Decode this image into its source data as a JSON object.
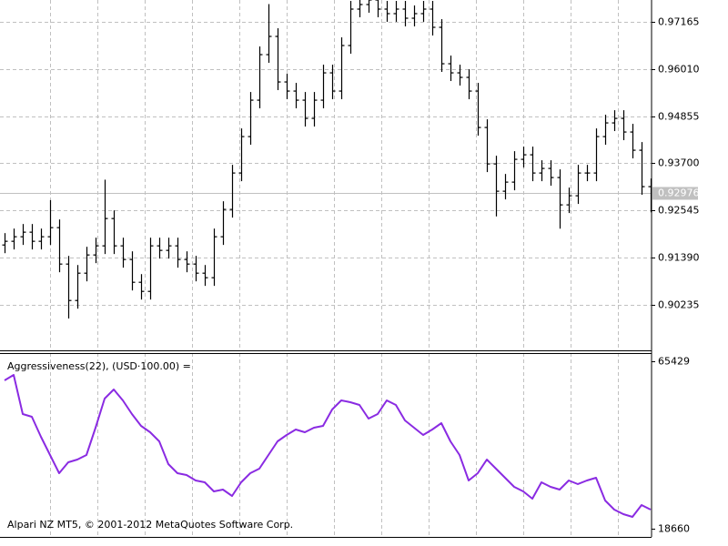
{
  "chart_data": [
    {
      "type": "ohlc",
      "color": "#000000",
      "grid": true,
      "ylim": [
        0.8912,
        0.977
      ],
      "yticks": [
        0.97165,
        0.9601,
        0.94855,
        0.937,
        0.92545,
        0.9139,
        0.90235
      ],
      "ytick_labels": [
        "0.97165",
        "0.96010",
        "0.94855",
        "0.93700",
        "0.92545",
        "0.91390",
        "0.90235"
      ],
      "current_price": 0.92976,
      "current_price_color": "#c0c0c0",
      "open": [
        0.917,
        0.91791,
        0.91902,
        0.92014,
        0.91791,
        0.91902,
        0.92125,
        0.91233,
        0.90341,
        0.9101,
        0.91456,
        0.91679,
        0.92348,
        0.91679,
        0.91345,
        0.90787,
        0.90564,
        0.91679,
        0.91568,
        0.91679,
        0.91345,
        0.91233,
        0.9101,
        0.90899,
        0.91902,
        0.92571,
        0.93463,
        0.94355,
        0.95247,
        0.96362,
        0.96808,
        0.95693,
        0.9547,
        0.95247,
        0.94801,
        0.95247,
        0.95916,
        0.9547,
        0.96585,
        0.97477,
        0.97589,
        0.977,
        0.97477,
        0.97366,
        0.97477,
        0.97254,
        0.97366,
        0.97477,
        0.97031,
        0.96139,
        0.95916,
        0.95805,
        0.9547,
        0.94578,
        0.93686,
        0.93017,
        0.9324,
        0.93798,
        0.93909,
        0.93463,
        0.93575,
        0.93352,
        0.92683,
        0.92906,
        0.93463,
        0.93463,
        0.94355,
        0.9469,
        0.94801,
        0.94467,
        0.94021,
        0.93129
      ],
      "high": [
        0.91991,
        0.92102,
        0.92214,
        0.92214,
        0.92102,
        0.928,
        0.92325,
        0.91433,
        0.9121,
        0.91656,
        0.91879,
        0.933,
        0.92548,
        0.91879,
        0.91545,
        0.90987,
        0.91879,
        0.91879,
        0.91879,
        0.91879,
        0.91545,
        0.91433,
        0.9121,
        0.92102,
        0.92771,
        0.93663,
        0.94555,
        0.95447,
        0.96562,
        0.976,
        0.97008,
        0.95893,
        0.9567,
        0.95447,
        0.95447,
        0.96116,
        0.96116,
        0.96785,
        0.97677,
        0.97789,
        0.979,
        0.979,
        0.97677,
        0.97677,
        0.97677,
        0.97566,
        0.97677,
        0.97677,
        0.97231,
        0.96339,
        0.96116,
        0.96005,
        0.9567,
        0.94778,
        0.93886,
        0.9344,
        0.93998,
        0.94109,
        0.94109,
        0.93775,
        0.93775,
        0.93552,
        0.93106,
        0.93663,
        0.93663,
        0.94555,
        0.9489,
        0.95001,
        0.95001,
        0.94667,
        0.94221,
        0.93329
      ],
      "low": [
        0.915,
        0.91591,
        0.91702,
        0.91591,
        0.91591,
        0.91702,
        0.91033,
        0.899,
        0.90141,
        0.9081,
        0.91256,
        0.91479,
        0.91479,
        0.91145,
        0.90587,
        0.90364,
        0.90364,
        0.91368,
        0.91368,
        0.91145,
        0.91033,
        0.9081,
        0.90699,
        0.90699,
        0.91702,
        0.92371,
        0.93263,
        0.94155,
        0.95047,
        0.96162,
        0.95493,
        0.9527,
        0.95047,
        0.94601,
        0.94601,
        0.95047,
        0.9527,
        0.9527,
        0.96385,
        0.97277,
        0.97389,
        0.97277,
        0.97166,
        0.97166,
        0.97054,
        0.97054,
        0.97166,
        0.96831,
        0.95939,
        0.95716,
        0.95605,
        0.9527,
        0.94378,
        0.93486,
        0.924,
        0.92817,
        0.9304,
        0.93598,
        0.93263,
        0.93263,
        0.93152,
        0.921,
        0.92483,
        0.92706,
        0.93263,
        0.93263,
        0.94155,
        0.9449,
        0.94267,
        0.93821,
        0.92929,
        0.925
      ],
      "close": [
        0.91791,
        0.91902,
        0.92014,
        0.91791,
        0.91902,
        0.92125,
        0.91233,
        0.90341,
        0.9101,
        0.91456,
        0.91679,
        0.92348,
        0.91679,
        0.91345,
        0.90787,
        0.90564,
        0.91679,
        0.91568,
        0.91679,
        0.91345,
        0.91233,
        0.9101,
        0.90899,
        0.91902,
        0.92571,
        0.93463,
        0.94355,
        0.95247,
        0.96362,
        0.96808,
        0.95693,
        0.9547,
        0.95247,
        0.94801,
        0.95247,
        0.95916,
        0.9547,
        0.96585,
        0.97477,
        0.97589,
        0.977,
        0.97477,
        0.97366,
        0.97477,
        0.97254,
        0.97366,
        0.97477,
        0.97031,
        0.96139,
        0.95916,
        0.95805,
        0.9547,
        0.94578,
        0.93686,
        0.93017,
        0.9324,
        0.93798,
        0.93909,
        0.93463,
        0.93575,
        0.93352,
        0.92683,
        0.92906,
        0.93463,
        0.93463,
        0.94355,
        0.9469,
        0.94801,
        0.94467,
        0.94021,
        0.93129,
        0.92976
      ]
    },
    {
      "type": "line",
      "title": "Aggressiveness(22), (USD·100.00) =",
      "color": "#8a2be2",
      "ylim": [
        16370,
        67720
      ],
      "yticks": [
        65429,
        18660
      ],
      "values": [
        60090,
        61620,
        50690,
        49920,
        44330,
        39250,
        34160,
        37210,
        37980,
        39250,
        46870,
        55010,
        57550,
        54500,
        50690,
        47380,
        45600,
        43060,
        36700,
        34160,
        33650,
        32130,
        31620,
        29080,
        29590,
        27810,
        31620,
        34160,
        35430,
        39250,
        43060,
        44840,
        46360,
        45600,
        46870,
        47380,
        51960,
        54500,
        53990,
        53230,
        49410,
        50690,
        54500,
        53230,
        48910,
        46870,
        44840,
        46360,
        48140,
        43060,
        39250,
        32130,
        34160,
        37980,
        35430,
        32890,
        30350,
        29080,
        27040,
        31620,
        30350,
        29590,
        32130,
        31110,
        32130,
        32890,
        26540,
        23990,
        22720,
        21960,
        25270,
        23990
      ]
    }
  ],
  "footer": "Alpari NZ MT5, © 2001-2012 MetaQuotes Software Corp."
}
